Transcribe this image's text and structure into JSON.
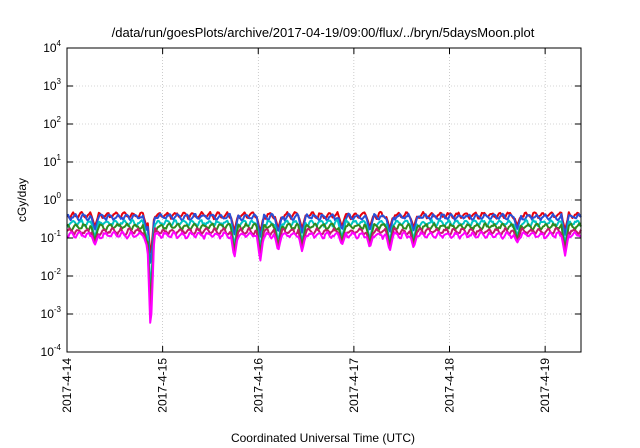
{
  "chart_data": {
    "type": "line",
    "title": "/data/run/goesPlots/archive/2017-04-19/09:00/flux/../bryn/5daysMoon.plot",
    "xlabel": "Coordinated Universal Time (UTC)",
    "ylabel": "cGy/day",
    "x_axis": "time",
    "xlim": [
      "2017-04-14T00:00",
      "2017-04-19T09:00"
    ],
    "x_ticks": [
      "2017-4-14",
      "2017-4-15",
      "2017-4-16",
      "2017-4-17",
      "2017-4-18",
      "2017-4-19"
    ],
    "y_scale": "log",
    "ylim": [
      0.0001,
      10000
    ],
    "y_ticks": [
      {
        "base": "10",
        "exp": "-4"
      },
      {
        "base": "10",
        "exp": "-3"
      },
      {
        "base": "10",
        "exp": "-2"
      },
      {
        "base": "10",
        "exp": "-1"
      },
      {
        "base": "10",
        "exp": "0"
      },
      {
        "base": "10",
        "exp": "1"
      },
      {
        "base": "10",
        "exp": "2"
      },
      {
        "base": "10",
        "exp": "3"
      },
      {
        "base": "10",
        "exp": "4"
      }
    ],
    "grid": true,
    "legend": "none",
    "series": [
      {
        "color": "#e8000b",
        "baseline": 0.4,
        "dip_depth": 0.4
      },
      {
        "color": "#2a4fd6",
        "baseline": 0.36,
        "dip_depth": 0.5
      },
      {
        "color": "#00c4c4",
        "baseline": 0.25,
        "dip_depth": 0.7
      },
      {
        "color": "#2e8b1e",
        "baseline": 0.2,
        "dip_depth": 0.85
      },
      {
        "color": "#c41b6a",
        "baseline": 0.15,
        "dip_depth": 1.0
      },
      {
        "color": "#ff00ff",
        "baseline": 0.12,
        "dip_depth": 1.15
      }
    ],
    "dips": [
      {
        "t": "2017-04-14T07:00",
        "min": 0.07
      },
      {
        "t": "2017-04-14T20:00",
        "min": 0.07
      },
      {
        "t": "2017-04-14T21:00",
        "min": 0.0006
      },
      {
        "t": "2017-04-15T18:00",
        "min": 0.035
      },
      {
        "t": "2017-04-16T00:30",
        "min": 0.03
      },
      {
        "t": "2017-04-16T05:00",
        "min": 0.05
      },
      {
        "t": "2017-04-16T11:00",
        "min": 0.05
      },
      {
        "t": "2017-04-16T21:00",
        "min": 0.07
      },
      {
        "t": "2017-04-17T04:00",
        "min": 0.06
      },
      {
        "t": "2017-04-17T09:00",
        "min": 0.05
      },
      {
        "t": "2017-04-17T15:00",
        "min": 0.06
      },
      {
        "t": "2017-04-18T17:00",
        "min": 0.08
      },
      {
        "t": "2017-04-19T05:00",
        "min": 0.04
      }
    ]
  }
}
